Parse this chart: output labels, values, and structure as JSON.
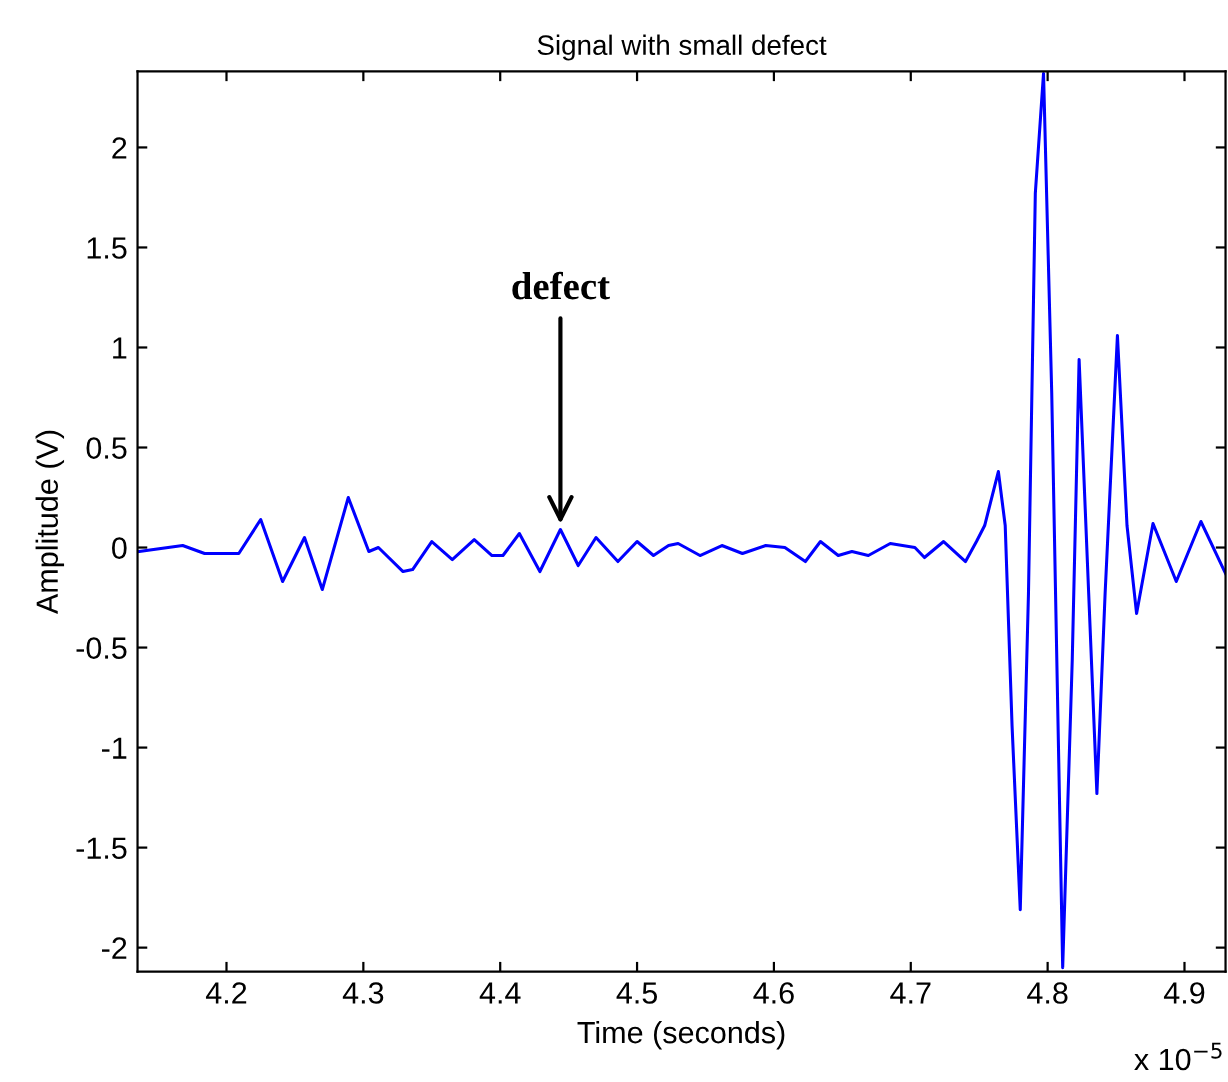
{
  "chart_data": {
    "type": "line",
    "title": "Signal with small defect",
    "xlabel": "Time (seconds)",
    "ylabel": "Amplitude (V)",
    "x": [
      4.136,
      4.168,
      4.184,
      4.209,
      4.225,
      4.241,
      4.257,
      4.27,
      4.289,
      4.304,
      4.311,
      4.329,
      4.336,
      4.35,
      4.365,
      4.381,
      4.394,
      4.402,
      4.414,
      4.429,
      4.444,
      4.457,
      4.47,
      4.486,
      4.5,
      4.512,
      4.523,
      4.53,
      4.546,
      4.562,
      4.577,
      4.594,
      4.608,
      4.623,
      4.634,
      4.647,
      4.657,
      4.669,
      4.685,
      4.703,
      4.71,
      4.724,
      4.74,
      4.748,
      4.754,
      4.764,
      4.769,
      4.774,
      4.78,
      4.786,
      4.791,
      4.797,
      4.803,
      4.811,
      4.818,
      4.823,
      4.83,
      4.836,
      4.842,
      4.851,
      4.858,
      4.865,
      4.877,
      4.894,
      4.912,
      4.93
    ],
    "series": [
      {
        "color": "#0000ff",
        "values": [
          -0.02,
          0.01,
          -0.03,
          -0.03,
          0.14,
          -0.17,
          0.05,
          -0.21,
          0.25,
          -0.02,
          0.0,
          -0.12,
          -0.11,
          0.03,
          -0.06,
          0.04,
          -0.04,
          -0.04,
          0.07,
          -0.12,
          0.09,
          -0.09,
          0.05,
          -0.07,
          0.03,
          -0.04,
          0.01,
          0.02,
          -0.04,
          0.01,
          -0.03,
          0.01,
          0.0,
          -0.07,
          0.03,
          -0.04,
          -0.02,
          -0.04,
          0.02,
          0.0,
          -0.05,
          0.03,
          -0.07,
          0.03,
          0.11,
          0.38,
          0.11,
          -0.89,
          -1.81,
          -0.23,
          1.77,
          2.37,
          0.77,
          -2.1,
          -0.56,
          0.94,
          -0.23,
          -1.23,
          -0.23,
          1.06,
          0.11,
          -0.33,
          0.12,
          -0.17,
          0.13,
          -0.13
        ]
      }
    ],
    "xlim": [
      4.135,
      4.93
    ],
    "ylim": [
      -2.12,
      2.38
    ],
    "xticks": [
      4.2,
      4.3,
      4.4,
      4.5,
      4.6,
      4.7,
      4.8,
      4.9
    ],
    "yticks": [
      -2,
      -1.5,
      -1,
      -0.5,
      0,
      0.5,
      1,
      1.5,
      2
    ],
    "grid": false,
    "legend": false,
    "marker": "none",
    "line_style": "solid",
    "annotations": [
      {
        "text": "defect",
        "x": 4.444,
        "y": 0.09
      },
      "x 10$^{−5}$"
    ]
  }
}
